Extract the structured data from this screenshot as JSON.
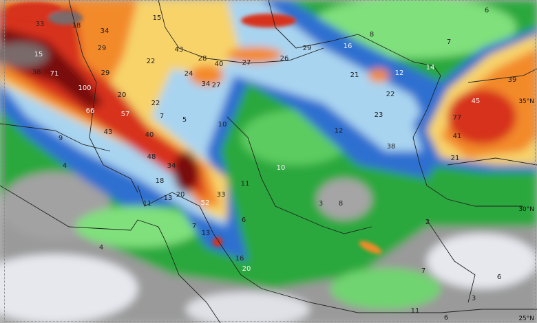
{
  "map": {
    "type": "precipitation forecast map",
    "legend_colors": {
      "very_heavy": "#7a0a0a",
      "heavy": "#d7301f",
      "moderate_high": "#f38a2a",
      "moderate": "#f7d36a",
      "light_moderate": "#a9d4f0",
      "light_blue": "#2f6fd0",
      "light": "#1fa33a",
      "very_light": "#7fe07c",
      "trace": "#8a8a8a",
      "none": "#ecedf2"
    },
    "latitude_labels": [
      "35°N",
      "30°N",
      "25°N"
    ],
    "value_labels": [
      "33",
      "18",
      "34",
      "15",
      "15",
      "29",
      "43",
      "28",
      "40",
      "27",
      "26",
      "29",
      "22",
      "38",
      "71",
      "100",
      "29",
      "24",
      "34",
      "27",
      "20",
      "22",
      "66",
      "57",
      "43",
      "40",
      "48",
      "7",
      "5",
      "10",
      "9",
      "16",
      "8",
      "7",
      "6",
      "21",
      "12",
      "14",
      "22",
      "23",
      "12",
      "38",
      "45",
      "77",
      "39",
      "41",
      "21",
      "34",
      "18",
      "20",
      "13",
      "11",
      "52",
      "33",
      "11",
      "6",
      "4",
      "7",
      "13",
      "16",
      "20",
      "3",
      "8",
      "2",
      "7",
      "6",
      "3",
      "11",
      "6",
      "10",
      "4"
    ]
  }
}
